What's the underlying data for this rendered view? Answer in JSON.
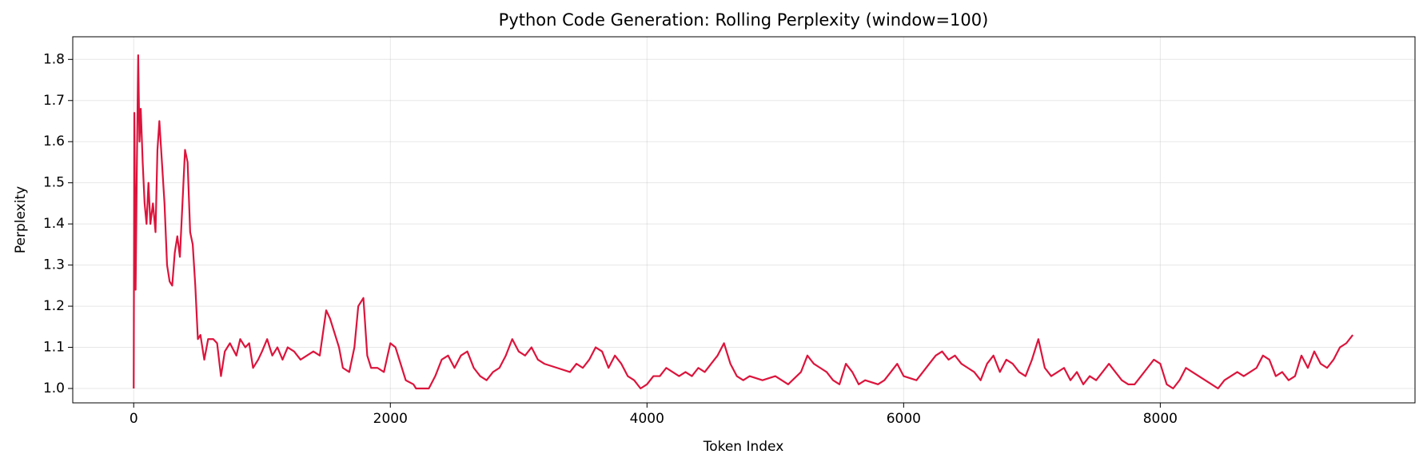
{
  "chart_data": {
    "type": "line",
    "title": "Python Code Generation: Rolling Perplexity (window=100)",
    "xlabel": "Token Index",
    "ylabel": "Perplexity",
    "color": "#dc143c",
    "grid": true,
    "xlim": [
      -475,
      9985
    ],
    "ylim": [
      0.965,
      1.855
    ],
    "xticks": [
      0,
      2000,
      4000,
      6000,
      8000
    ],
    "yticks": [
      {
        "value": 1,
        "label": "1.0"
      },
      1.1,
      1.2,
      1.3,
      1.4,
      1.5,
      1.6,
      1.7,
      1.8
    ],
    "x": [
      0,
      5,
      15,
      25,
      35,
      45,
      55,
      70,
      85,
      100,
      115,
      130,
      150,
      170,
      185,
      200,
      220,
      240,
      260,
      280,
      300,
      320,
      340,
      360,
      380,
      400,
      420,
      440,
      460,
      480,
      500,
      520,
      550,
      580,
      620,
      650,
      680,
      710,
      750,
      800,
      830,
      870,
      900,
      930,
      970,
      1000,
      1040,
      1080,
      1120,
      1160,
      1200,
      1250,
      1300,
      1350,
      1400,
      1450,
      1500,
      1530,
      1560,
      1600,
      1630,
      1680,
      1720,
      1750,
      1790,
      1820,
      1850,
      1900,
      1950,
      2000,
      2040,
      2080,
      2120,
      2180,
      2200,
      2300,
      2350,
      2400,
      2450,
      2500,
      2550,
      2600,
      2650,
      2700,
      2750,
      2800,
      2850,
      2900,
      2950,
      3000,
      3050,
      3100,
      3150,
      3200,
      3300,
      3400,
      3450,
      3500,
      3550,
      3600,
      3650,
      3700,
      3750,
      3800,
      3850,
      3900,
      3950,
      4000,
      4050,
      4100,
      4150,
      4200,
      4250,
      4300,
      4350,
      4400,
      4450,
      4500,
      4550,
      4600,
      4650,
      4700,
      4750,
      4800,
      4900,
      5000,
      5100,
      5200,
      5250,
      5300,
      5350,
      5400,
      5450,
      5500,
      5550,
      5600,
      5650,
      5700,
      5800,
      5850,
      5900,
      5950,
      6000,
      6100,
      6150,
      6200,
      6250,
      6300,
      6350,
      6400,
      6450,
      6500,
      6550,
      6600,
      6650,
      6700,
      6750,
      6800,
      6850,
      6900,
      6950,
      7000,
      7050,
      7100,
      7150,
      7200,
      7250,
      7300,
      7350,
      7400,
      7450,
      7500,
      7550,
      7600,
      7650,
      7700,
      7750,
      7800,
      7850,
      7900,
      7950,
      8000,
      8050,
      8100,
      8150,
      8200,
      8250,
      8300,
      8350,
      8400,
      8450,
      8500,
      8550,
      8600,
      8650,
      8700,
      8750,
      8800,
      8850,
      8900,
      8950,
      9000,
      9050,
      9100,
      9150,
      9200,
      9250,
      9300,
      9350,
      9400,
      9450,
      9500
    ],
    "values": [
      1.0,
      1.67,
      1.24,
      1.55,
      1.81,
      1.6,
      1.68,
      1.55,
      1.45,
      1.4,
      1.5,
      1.4,
      1.45,
      1.38,
      1.58,
      1.65,
      1.55,
      1.45,
      1.3,
      1.26,
      1.25,
      1.33,
      1.37,
      1.32,
      1.45,
      1.58,
      1.55,
      1.38,
      1.35,
      1.25,
      1.12,
      1.13,
      1.07,
      1.12,
      1.12,
      1.11,
      1.03,
      1.09,
      1.11,
      1.08,
      1.12,
      1.1,
      1.11,
      1.05,
      1.07,
      1.09,
      1.12,
      1.08,
      1.1,
      1.07,
      1.1,
      1.09,
      1.07,
      1.08,
      1.09,
      1.08,
      1.19,
      1.17,
      1.14,
      1.1,
      1.05,
      1.04,
      1.1,
      1.2,
      1.22,
      1.08,
      1.05,
      1.05,
      1.04,
      1.11,
      1.1,
      1.06,
      1.02,
      1.01,
      1.0,
      1.0,
      1.03,
      1.07,
      1.08,
      1.05,
      1.08,
      1.09,
      1.05,
      1.03,
      1.02,
      1.04,
      1.05,
      1.08,
      1.12,
      1.09,
      1.08,
      1.1,
      1.07,
      1.06,
      1.05,
      1.04,
      1.06,
      1.05,
      1.07,
      1.1,
      1.09,
      1.05,
      1.08,
      1.06,
      1.03,
      1.02,
      1.0,
      1.01,
      1.03,
      1.03,
      1.05,
      1.04,
      1.03,
      1.04,
      1.03,
      1.05,
      1.04,
      1.06,
      1.08,
      1.11,
      1.06,
      1.03,
      1.02,
      1.03,
      1.02,
      1.03,
      1.01,
      1.04,
      1.08,
      1.06,
      1.05,
      1.04,
      1.02,
      1.01,
      1.06,
      1.04,
      1.01,
      1.02,
      1.01,
      1.02,
      1.04,
      1.06,
      1.03,
      1.02,
      1.04,
      1.06,
      1.08,
      1.09,
      1.07,
      1.08,
      1.06,
      1.05,
      1.04,
      1.02,
      1.06,
      1.08,
      1.04,
      1.07,
      1.06,
      1.04,
      1.03,
      1.07,
      1.12,
      1.05,
      1.03,
      1.04,
      1.05,
      1.02,
      1.04,
      1.01,
      1.03,
      1.02,
      1.04,
      1.06,
      1.04,
      1.02,
      1.01,
      1.01,
      1.03,
      1.05,
      1.07,
      1.06,
      1.01,
      1.0,
      1.02,
      1.05,
      1.04,
      1.03,
      1.02,
      1.01,
      1.0,
      1.02,
      1.03,
      1.04,
      1.03,
      1.04,
      1.05,
      1.08,
      1.07,
      1.03,
      1.04,
      1.02,
      1.03,
      1.08,
      1.05,
      1.09,
      1.06,
      1.05,
      1.07,
      1.1,
      1.11,
      1.13
    ]
  }
}
